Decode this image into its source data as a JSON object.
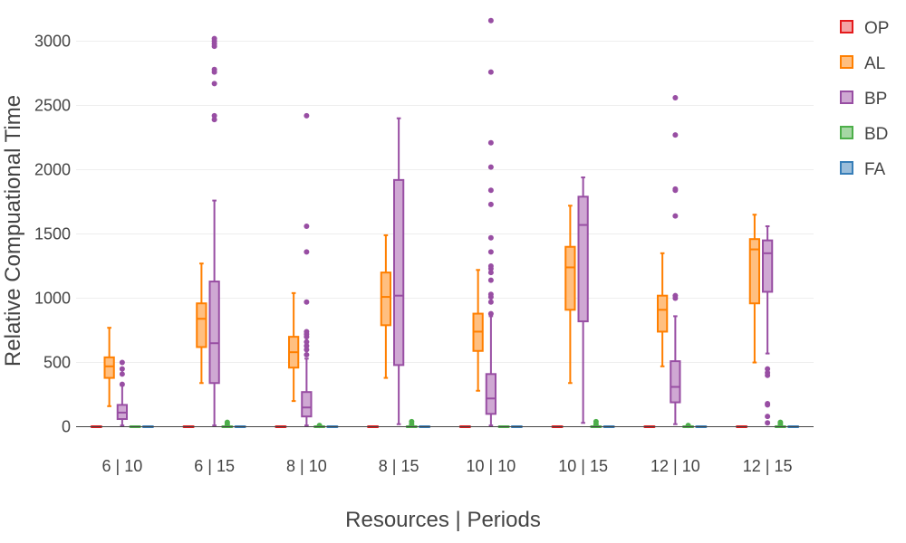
{
  "chart_data": {
    "type": "box",
    "xlabel": "Resources | Periods",
    "ylabel": "Relative Compuational Time",
    "categories": [
      "6 | 10",
      "6 | 15",
      "8 | 10",
      "8 | 15",
      "10 | 10",
      "10 | 15",
      "12 | 10",
      "12 | 15"
    ],
    "yticks": [
      0,
      500,
      1000,
      1500,
      2000,
      2500,
      3000
    ],
    "yticklabels": [
      "0",
      "500",
      "1000",
      "1500",
      "2000",
      "2500",
      "3000"
    ],
    "ylim": [
      -130,
      3250
    ],
    "grid": true,
    "legend_position": "right",
    "series": [
      {
        "name": "OP",
        "color": "#e41a1c",
        "fill": "#f4a3a4",
        "boxes": [
          {
            "min": 0,
            "q1": 0,
            "median": 0,
            "q3": 0,
            "max": 0,
            "outliers": []
          },
          {
            "min": 0,
            "q1": 0,
            "median": 0,
            "q3": 0,
            "max": 0,
            "outliers": []
          },
          {
            "min": 0,
            "q1": 0,
            "median": 0,
            "q3": 0,
            "max": 0,
            "outliers": []
          },
          {
            "min": 0,
            "q1": 0,
            "median": 0,
            "q3": 0,
            "max": 0,
            "outliers": []
          },
          {
            "min": 0,
            "q1": 0,
            "median": 0,
            "q3": 0,
            "max": 0,
            "outliers": []
          },
          {
            "min": 0,
            "q1": 0,
            "median": 0,
            "q3": 0,
            "max": 0,
            "outliers": []
          },
          {
            "min": 0,
            "q1": 0,
            "median": 0,
            "q3": 0,
            "max": 0,
            "outliers": []
          },
          {
            "min": 0,
            "q1": 0,
            "median": 0,
            "q3": 0,
            "max": 0,
            "outliers": []
          }
        ]
      },
      {
        "name": "AL",
        "color": "#ff7f00",
        "fill": "#ffbf80",
        "boxes": [
          {
            "min": 160,
            "q1": 380,
            "median": 470,
            "q3": 540,
            "max": 770,
            "outliers": []
          },
          {
            "min": 340,
            "q1": 620,
            "median": 840,
            "q3": 960,
            "max": 1270,
            "outliers": []
          },
          {
            "min": 200,
            "q1": 460,
            "median": 580,
            "q3": 700,
            "max": 1040,
            "outliers": []
          },
          {
            "min": 380,
            "q1": 790,
            "median": 1010,
            "q3": 1200,
            "max": 1490,
            "outliers": []
          },
          {
            "min": 280,
            "q1": 590,
            "median": 740,
            "q3": 880,
            "max": 1220,
            "outliers": []
          },
          {
            "min": 340,
            "q1": 910,
            "median": 1240,
            "q3": 1400,
            "max": 1720,
            "outliers": []
          },
          {
            "min": 470,
            "q1": 740,
            "median": 910,
            "q3": 1020,
            "max": 1350,
            "outliers": []
          },
          {
            "min": 500,
            "q1": 960,
            "median": 1380,
            "q3": 1460,
            "max": 1650,
            "outliers": []
          }
        ]
      },
      {
        "name": "BP",
        "color": "#984ea3",
        "fill": "#cfa8d3",
        "boxes": [
          {
            "min": 10,
            "q1": 60,
            "median": 110,
            "q3": 170,
            "max": 320,
            "outliers": [
              330,
              410,
              450,
              500
            ]
          },
          {
            "min": 10,
            "q1": 340,
            "median": 650,
            "q3": 1130,
            "max": 1760,
            "outliers": [
              2390,
              2420,
              2670,
              2780,
              2760,
              2960,
              2980,
              3000,
              3020
            ]
          },
          {
            "min": 10,
            "q1": 80,
            "median": 150,
            "q3": 270,
            "max": 530,
            "outliers": [
              560,
              600,
              630,
              660,
              700,
              720,
              740,
              970,
              1360,
              1560,
              2420
            ]
          },
          {
            "min": 20,
            "q1": 480,
            "median": 1020,
            "q3": 1920,
            "max": 2400,
            "outliers": []
          },
          {
            "min": 10,
            "q1": 100,
            "median": 220,
            "q3": 410,
            "max": 860,
            "outliers": [
              880,
              970,
              1010,
              1030,
              1140,
              1200,
              1230,
              1250,
              1360,
              1470,
              1730,
              1840,
              2020,
              2210,
              2760,
              3160
            ]
          },
          {
            "min": 30,
            "q1": 820,
            "median": 1570,
            "q3": 1790,
            "max": 1940,
            "outliers": []
          },
          {
            "min": 20,
            "q1": 190,
            "median": 310,
            "q3": 510,
            "max": 860,
            "outliers": [
              1000,
              1020,
              1640,
              1840,
              1850,
              2270,
              2560
            ]
          },
          {
            "min": 570,
            "q1": 1050,
            "median": 1350,
            "q3": 1450,
            "max": 1560,
            "outliers": [
              30,
              80,
              170,
              180,
              400,
              420,
              450
            ]
          }
        ]
      },
      {
        "name": "BD",
        "color": "#4daf4a",
        "fill": "#a6d7a4",
        "boxes": [
          {
            "min": 0,
            "q1": 0,
            "median": 0,
            "q3": 0,
            "max": 0,
            "outliers": []
          },
          {
            "min": 0,
            "q1": 0,
            "median": 0,
            "q3": 0,
            "max": 0,
            "outliers": [
              20,
              35
            ]
          },
          {
            "min": 0,
            "q1": 0,
            "median": 0,
            "q3": 0,
            "max": 0,
            "outliers": [
              10
            ]
          },
          {
            "min": 0,
            "q1": 0,
            "median": 0,
            "q3": 0,
            "max": 0,
            "outliers": [
              20,
              40
            ]
          },
          {
            "min": 0,
            "q1": 0,
            "median": 0,
            "q3": 0,
            "max": 0,
            "outliers": []
          },
          {
            "min": 0,
            "q1": 0,
            "median": 0,
            "q3": 0,
            "max": 0,
            "outliers": [
              20,
              40
            ]
          },
          {
            "min": 0,
            "q1": 0,
            "median": 0,
            "q3": 0,
            "max": 0,
            "outliers": [
              10
            ]
          },
          {
            "min": 0,
            "q1": 0,
            "median": 0,
            "q3": 0,
            "max": 0,
            "outliers": [
              20,
              35
            ]
          }
        ]
      },
      {
        "name": "FA",
        "color": "#377eb8",
        "fill": "#9bbedb",
        "boxes": [
          {
            "min": 0,
            "q1": 0,
            "median": 0,
            "q3": 0,
            "max": 0,
            "outliers": []
          },
          {
            "min": 0,
            "q1": 0,
            "median": 0,
            "q3": 0,
            "max": 0,
            "outliers": []
          },
          {
            "min": 0,
            "q1": 0,
            "median": 0,
            "q3": 0,
            "max": 0,
            "outliers": []
          },
          {
            "min": 0,
            "q1": 0,
            "median": 0,
            "q3": 0,
            "max": 0,
            "outliers": []
          },
          {
            "min": 0,
            "q1": 0,
            "median": 0,
            "q3": 0,
            "max": 0,
            "outliers": []
          },
          {
            "min": 0,
            "q1": 0,
            "median": 0,
            "q3": 0,
            "max": 0,
            "outliers": []
          },
          {
            "min": 0,
            "q1": 0,
            "median": 0,
            "q3": 0,
            "max": 0,
            "outliers": []
          },
          {
            "min": 0,
            "q1": 0,
            "median": 0,
            "q3": 0,
            "max": 0,
            "outliers": []
          }
        ]
      }
    ]
  }
}
